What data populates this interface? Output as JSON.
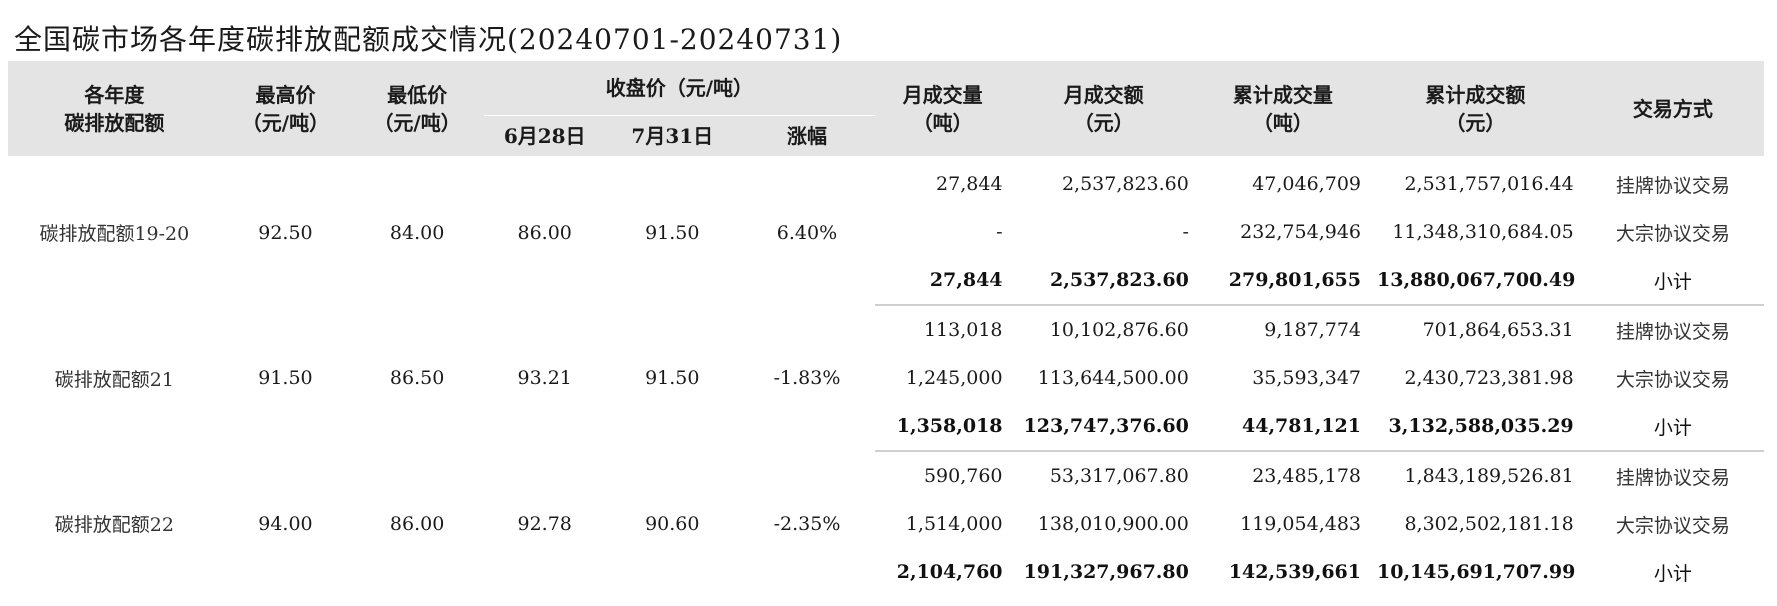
{
  "title": "全国碳市场各年度碳排放配额成交情况(20240701-20240731)",
  "header": {
    "col_year": "各年度\n碳排放配额",
    "col_year_line1": "各年度",
    "col_year_line2": "碳排放配额",
    "col_high_line1": "最高价",
    "col_high_line2": "（元/吨）",
    "col_low_line1": "最低价",
    "col_low_line2": "（元/吨）",
    "col_close": "收盘价（元/吨）",
    "col_close_jun": "6月28日",
    "col_close_jul": "7月31日",
    "col_change": "涨幅",
    "col_month_vol_line1": "月成交量",
    "col_month_vol_line2": "（吨）",
    "col_month_amt_line1": "月成交额",
    "col_month_amt_line2": "（元）",
    "col_cum_vol_line1": "累计成交量",
    "col_cum_vol_line2": "（吨）",
    "col_cum_amt_line1": "累计成交额",
    "col_cum_amt_line2": "（元）",
    "col_type": "交易方式"
  },
  "groups": [
    {
      "name": "碳排放配额19-20",
      "high": "92.50",
      "low": "84.00",
      "close_jun": "86.00",
      "close_jul": "91.50",
      "change": "6.40%",
      "rows": [
        {
          "month_vol": "27,844",
          "month_amt": "2,537,823.60",
          "cum_vol": "47,046,709",
          "cum_amt": "2,531,757,016.44",
          "type": "挂牌协议交易"
        },
        {
          "month_vol": "-",
          "month_amt": "-",
          "cum_vol": "232,754,946",
          "cum_amt": "11,348,310,684.05",
          "type": "大宗协议交易"
        },
        {
          "month_vol": "27,844",
          "month_amt": "2,537,823.60",
          "cum_vol": "279,801,655",
          "cum_amt": "13,880,067,700.49",
          "type": "小计"
        }
      ]
    },
    {
      "name": "碳排放配额21",
      "high": "91.50",
      "low": "86.50",
      "close_jun": "93.21",
      "close_jul": "91.50",
      "change": "-1.83%",
      "rows": [
        {
          "month_vol": "113,018",
          "month_amt": "10,102,876.60",
          "cum_vol": "9,187,774",
          "cum_amt": "701,864,653.31",
          "type": "挂牌协议交易"
        },
        {
          "month_vol": "1,245,000",
          "month_amt": "113,644,500.00",
          "cum_vol": "35,593,347",
          "cum_amt": "2,430,723,381.98",
          "type": "大宗协议交易"
        },
        {
          "month_vol": "1,358,018",
          "month_amt": "123,747,376.60",
          "cum_vol": "44,781,121",
          "cum_amt": "3,132,588,035.29",
          "type": "小计"
        }
      ]
    },
    {
      "name": "碳排放配额22",
      "high": "94.00",
      "low": "86.00",
      "close_jun": "92.78",
      "close_jul": "90.60",
      "change": "-2.35%",
      "rows": [
        {
          "month_vol": "590,760",
          "month_amt": "53,317,067.80",
          "cum_vol": "23,485,178",
          "cum_amt": "1,843,189,526.81",
          "type": "挂牌协议交易"
        },
        {
          "month_vol": "1,514,000",
          "month_amt": "138,010,900.00",
          "cum_vol": "119,054,483",
          "cum_amt": "8,302,502,181.18",
          "type": "大宗协议交易"
        },
        {
          "month_vol": "2,104,760",
          "month_amt": "191,327,967.80",
          "cum_vol": "142,539,661",
          "cum_amt": "10,145,691,707.99",
          "type": "小计"
        }
      ]
    }
  ]
}
